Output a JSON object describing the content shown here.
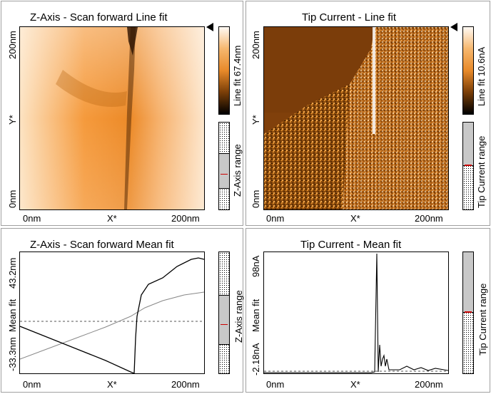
{
  "panels": {
    "z_line": {
      "title": "Z-Axis - Scan forward    Line fit",
      "ylabel_top": "200nm",
      "ylabel_mid": "Y*",
      "ylabel_bottom": "0nm",
      "xlabel_left": "0nm",
      "xlabel_mid": "X*",
      "xlabel_right": "200nm",
      "colorbar_label": "Line fit 67.4nm",
      "range_label": "Z-Axis range"
    },
    "tip_line": {
      "title": "Tip Current - Line fit",
      "ylabel_top": "200nm",
      "ylabel_mid": "Y*",
      "ylabel_bottom": "0nm",
      "xlabel_left": "0nm",
      "xlabel_mid": "X*",
      "xlabel_right": "200nm",
      "colorbar_label": "Line fit 10.6nA",
      "range_label": "Tip Current range"
    },
    "z_mean": {
      "title": "Z-Axis - Scan forward    Mean fit",
      "ylabel_top": "43.2nm",
      "ylabel_mid": "Mean fit",
      "ylabel_bottom": "-33.3nm",
      "xlabel_left": "0nm",
      "xlabel_mid": "X*",
      "xlabel_right": "200nm",
      "range_label": "Z-Axis range"
    },
    "tip_mean": {
      "title": "Tip Current - Mean fit",
      "ylabel_top": "98nA",
      "ylabel_mid": "Mean fit",
      "ylabel_bottom": "-2.18nA",
      "xlabel_left": "0nm",
      "xlabel_mid": "X*",
      "xlabel_right": "200nm",
      "range_label": "Tip Current range"
    }
  },
  "colors": {
    "orange_light": "#fce7cf",
    "orange_mid": "#f2922e",
    "orange_dark": "#a85a10",
    "range_marker": "#cc0000"
  }
}
